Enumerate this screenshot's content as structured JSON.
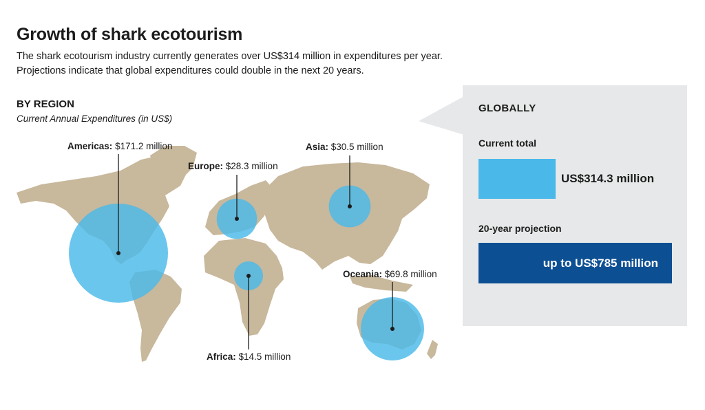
{
  "header": {
    "title": "Growth of shark ecotourism",
    "subtitle": "The shark ecotourism industry currently generates over US$314 million in expenditures per year. Projections indicate that global expenditures could double in the next 20 years."
  },
  "region_section": {
    "heading": "BY REGION",
    "subheading": "Current Annual Expenditures (in US$)"
  },
  "regions": [
    {
      "name": "Americas:",
      "value": "$171.2 million",
      "amount_million": 171.2
    },
    {
      "name": "Europe:",
      "value": "$28.3 million",
      "amount_million": 28.3
    },
    {
      "name": "Asia:",
      "value": "$30.5 million",
      "amount_million": 30.5
    },
    {
      "name": "Africa:",
      "value": "$14.5 million",
      "amount_million": 14.5
    },
    {
      "name": "Oceania:",
      "value": "$69.8 million",
      "amount_million": 69.8
    }
  ],
  "global_panel": {
    "heading": "GLOBALLY",
    "current_label": "Current total",
    "current_value": "US$314.3 million",
    "projection_label": "20-year projection",
    "projection_value": "up to US$785 million"
  },
  "colors": {
    "land": "#c8b89c",
    "bubble": "#4ab9e9",
    "panel": "#e7e8e9",
    "projection": "#0d4f93"
  }
}
